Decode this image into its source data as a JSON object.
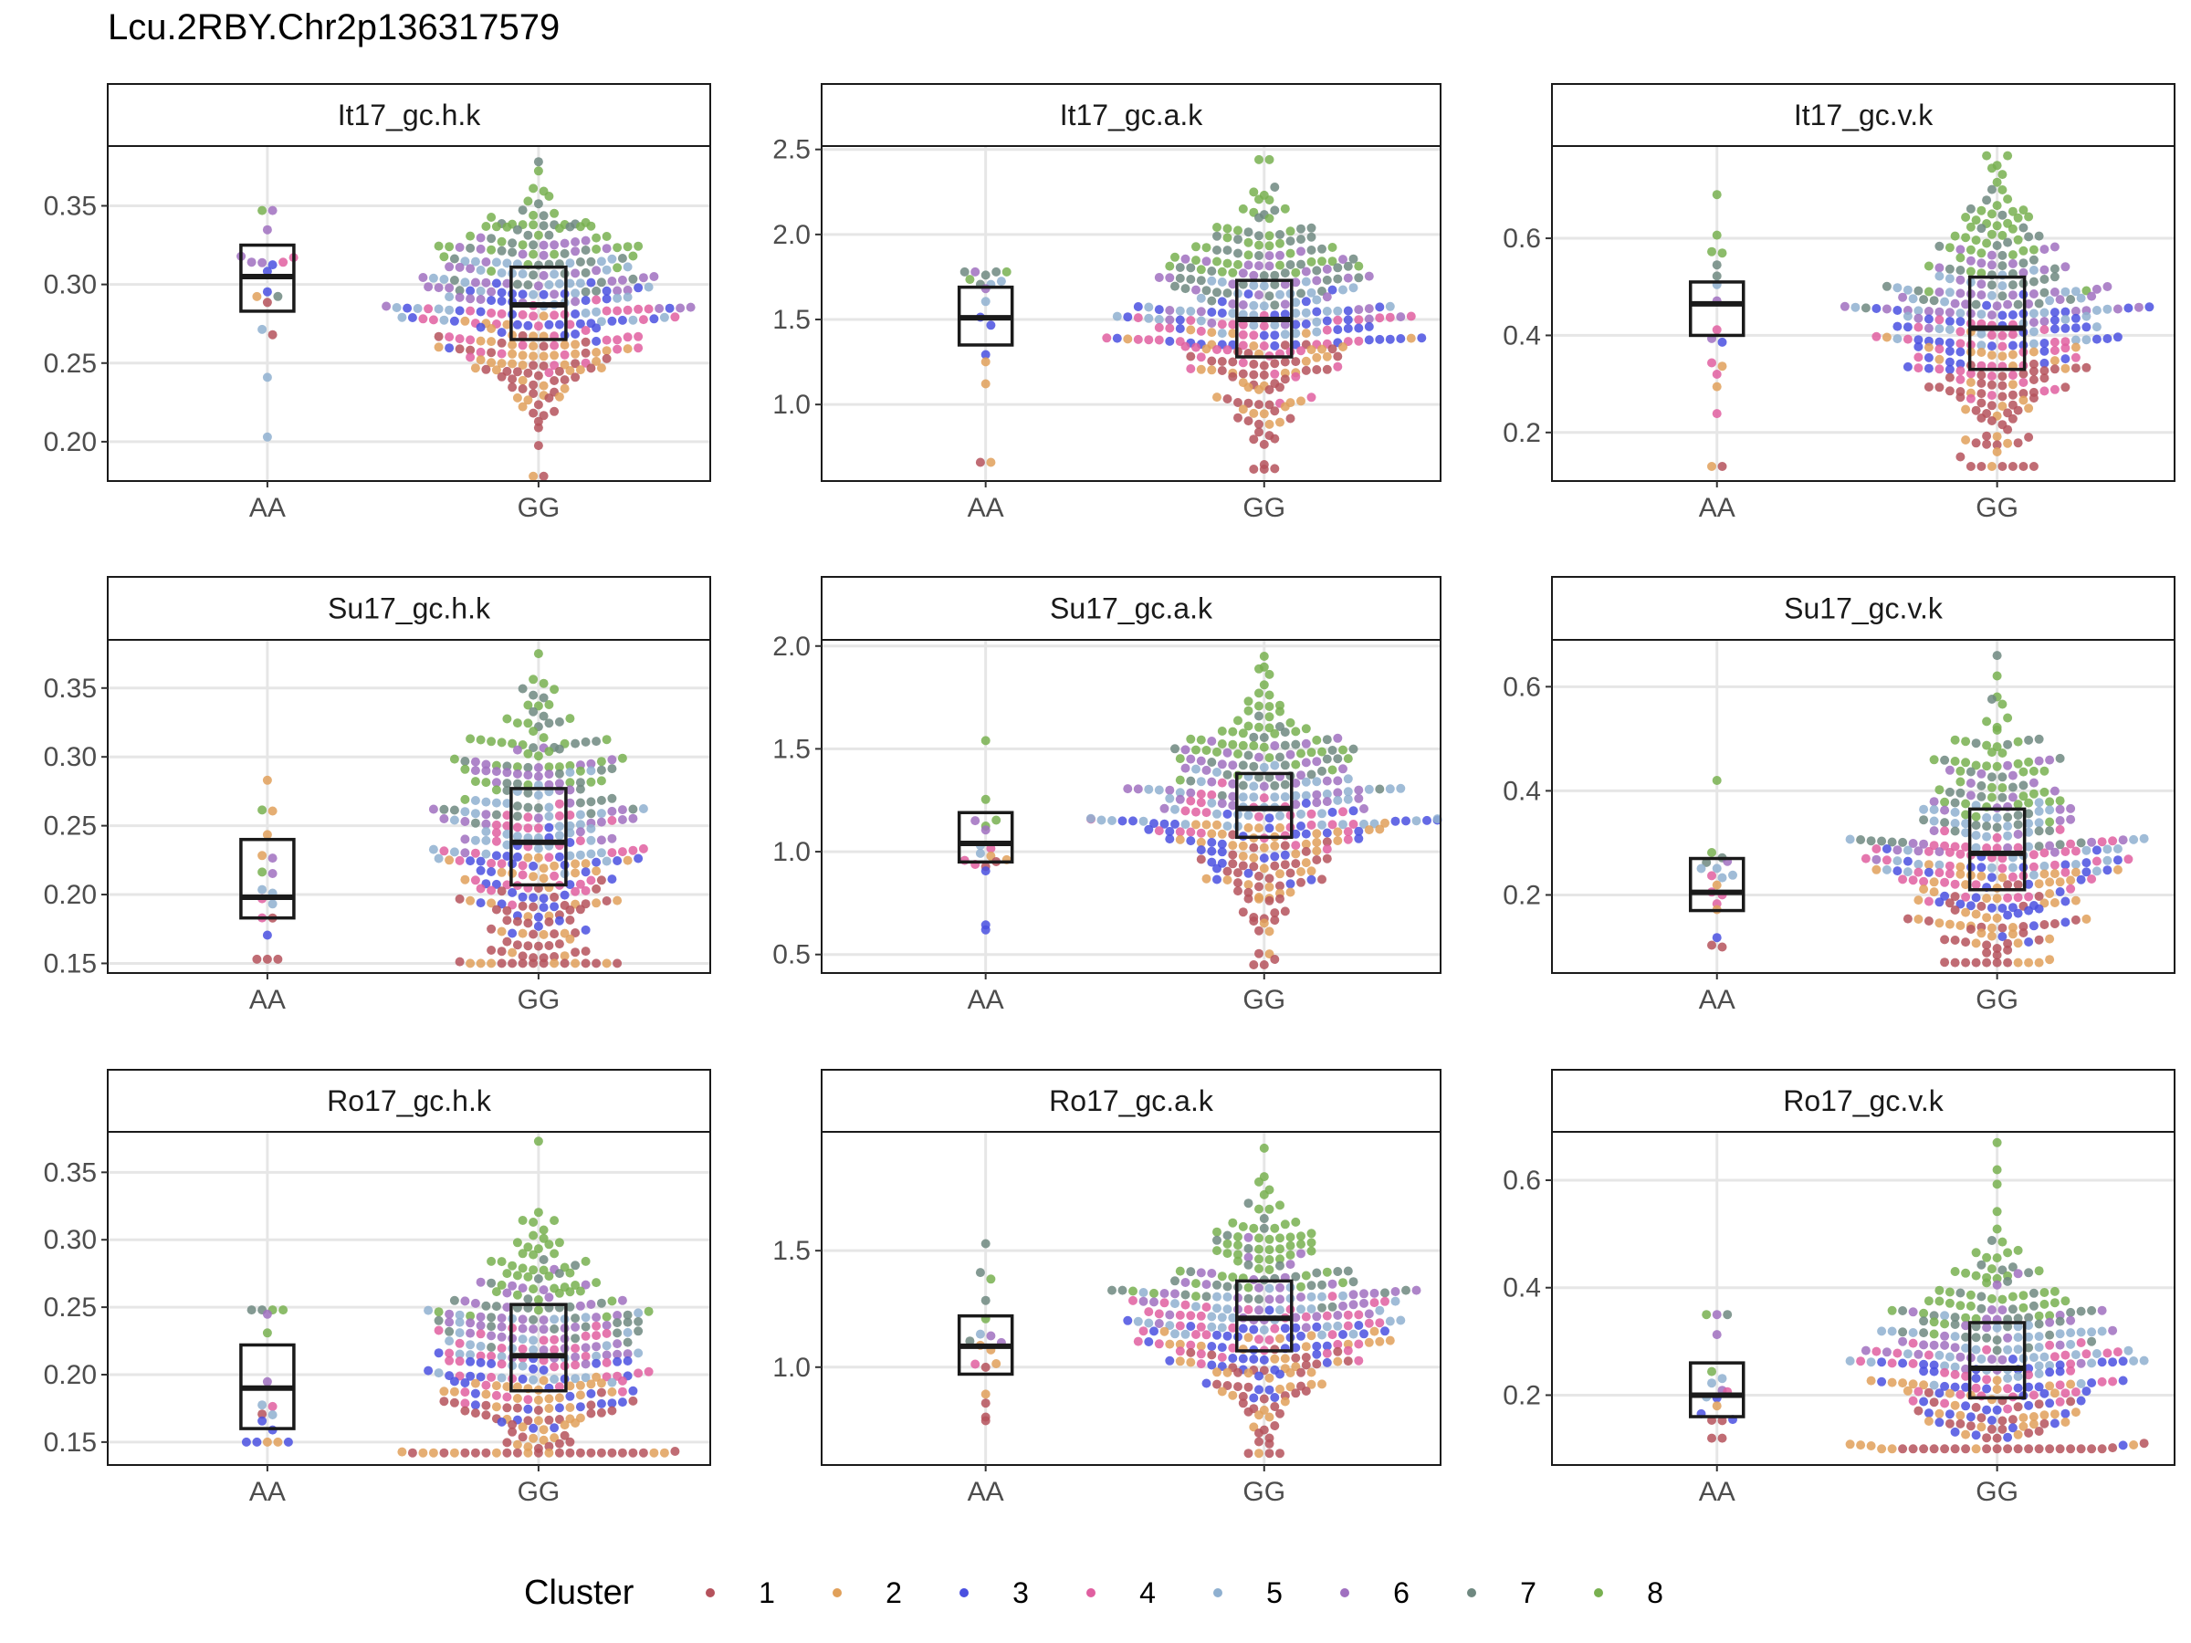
{
  "title": "Lcu.2RBY.Chr2p136317579",
  "legend": {
    "title": "Cluster",
    "labels": [
      "1",
      "2",
      "3",
      "4",
      "5",
      "6",
      "7",
      "8"
    ],
    "colors": [
      "#b5525c",
      "#e0a05a",
      "#4a50e0",
      "#e05fa0",
      "#8fb0d0",
      "#a070c0",
      "#6f8880",
      "#78b050"
    ]
  },
  "chart_data": [
    {
      "type": "scatter",
      "title": "It17_gc.h.k",
      "categories": [
        "AA",
        "GG"
      ],
      "ylim": [
        0.175,
        0.388
      ],
      "yticks": [
        0.2,
        0.25,
        0.3,
        0.35
      ],
      "ytick_labels": [
        "0.20",
        "0.25",
        "0.30",
        "0.35"
      ],
      "grid": true,
      "box": {
        "AA": {
          "q1": 0.283,
          "median": 0.305,
          "q3": 0.325
        },
        "GG": {
          "q1": 0.265,
          "median": 0.287,
          "q3": 0.311
        }
      },
      "range": {
        "AA": [
          0.203,
          0.347
        ],
        "GG": [
          0.178,
          0.378
        ]
      },
      "counts": {
        "AA": 18,
        "GG": 330
      },
      "order": {
        "AA": [
          5,
          1,
          2,
          7,
          3,
          4,
          6,
          8
        ],
        "GG": [
          1,
          2,
          4,
          3,
          5,
          6,
          7,
          8
        ]
      }
    },
    {
      "type": "scatter",
      "title": "It17_gc.a.k",
      "categories": [
        "AA",
        "GG"
      ],
      "ylim": [
        0.55,
        2.52
      ],
      "yticks": [
        1.0,
        1.5,
        2.0,
        2.5
      ],
      "ytick_labels": [
        "1.0",
        "1.5",
        "2.0",
        "2.5"
      ],
      "grid": true,
      "box": {
        "AA": {
          "q1": 1.35,
          "median": 1.51,
          "q3": 1.69
        },
        "GG": {
          "q1": 1.28,
          "median": 1.5,
          "q3": 1.73
        }
      },
      "range": {
        "AA": [
          0.66,
          1.78
        ],
        "GG": [
          0.62,
          2.44
        ]
      },
      "counts": {
        "AA": 18,
        "GG": 330
      },
      "order": {
        "AA": [
          1,
          2,
          3,
          4,
          5,
          6,
          7,
          8
        ],
        "GG": [
          1,
          2,
          4,
          3,
          5,
          6,
          7,
          8
        ]
      }
    },
    {
      "type": "scatter",
      "title": "It17_gc.v.k",
      "categories": [
        "AA",
        "GG"
      ],
      "ylim": [
        0.1,
        0.79
      ],
      "yticks": [
        0.2,
        0.4,
        0.6
      ],
      "ytick_labels": [
        "0.2",
        "0.4",
        "0.6"
      ],
      "grid": true,
      "box": {
        "AA": {
          "q1": 0.4,
          "median": 0.465,
          "q3": 0.51
        },
        "GG": {
          "q1": 0.33,
          "median": 0.415,
          "q3": 0.52
        }
      },
      "range": {
        "AA": [
          0.13,
          0.69
        ],
        "GG": [
          0.13,
          0.77
        ]
      },
      "counts": {
        "AA": 18,
        "GG": 330
      },
      "order": {
        "AA": [
          1,
          2,
          4,
          3,
          5,
          6,
          7,
          8
        ],
        "GG": [
          1,
          2,
          4,
          3,
          5,
          6,
          7,
          8
        ]
      }
    },
    {
      "type": "scatter",
      "title": "Su17_gc.h.k",
      "categories": [
        "AA",
        "GG"
      ],
      "ylim": [
        0.143,
        0.385
      ],
      "yticks": [
        0.15,
        0.2,
        0.25,
        0.3,
        0.35
      ],
      "ytick_labels": [
        "0.15",
        "0.20",
        "0.25",
        "0.30",
        "0.35"
      ],
      "grid": true,
      "box": {
        "AA": {
          "q1": 0.183,
          "median": 0.198,
          "q3": 0.24
        },
        "GG": {
          "q1": 0.207,
          "median": 0.238,
          "q3": 0.277
        }
      },
      "range": {
        "AA": [
          0.153,
          0.283
        ],
        "GG": [
          0.15,
          0.375
        ]
      },
      "counts": {
        "AA": 18,
        "GG": 330
      },
      "order": {
        "AA": [
          1,
          3,
          4,
          5,
          6,
          7,
          8,
          2
        ],
        "GG": [
          1,
          2,
          3,
          4,
          5,
          6,
          7,
          8
        ]
      }
    },
    {
      "type": "scatter",
      "title": "Su17_gc.a.k",
      "categories": [
        "AA",
        "GG"
      ],
      "ylim": [
        0.41,
        2.03
      ],
      "yticks": [
        0.5,
        1.0,
        1.5,
        2.0
      ],
      "ytick_labels": [
        "0.5",
        "1.0",
        "1.5",
        "2.0"
      ],
      "grid": true,
      "box": {
        "AA": {
          "q1": 0.95,
          "median": 1.04,
          "q3": 1.19
        },
        "GG": {
          "q1": 1.07,
          "median": 1.21,
          "q3": 1.38
        }
      },
      "range": {
        "AA": [
          0.62,
          1.54
        ],
        "GG": [
          0.45,
          1.95
        ]
      },
      "counts": {
        "AA": 18,
        "GG": 330
      },
      "order": {
        "AA": [
          1,
          3,
          2,
          4,
          5,
          6,
          7,
          8
        ],
        "GG": [
          1,
          2,
          3,
          4,
          5,
          6,
          7,
          8
        ]
      }
    },
    {
      "type": "scatter",
      "title": "Su17_gc.v.k",
      "categories": [
        "AA",
        "GG"
      ],
      "ylim": [
        0.05,
        0.69
      ],
      "yticks": [
        0.2,
        0.4,
        0.6
      ],
      "ytick_labels": [
        "0.2",
        "0.4",
        "0.6"
      ],
      "grid": true,
      "box": {
        "AA": {
          "q1": 0.17,
          "median": 0.205,
          "q3": 0.27
        },
        "GG": {
          "q1": 0.21,
          "median": 0.28,
          "q3": 0.365
        }
      },
      "range": {
        "AA": [
          0.1,
          0.42
        ],
        "GG": [
          0.07,
          0.66
        ]
      },
      "counts": {
        "AA": 18,
        "GG": 330
      },
      "order": {
        "AA": [
          1,
          3,
          2,
          4,
          5,
          6,
          7,
          8
        ],
        "GG": [
          1,
          2,
          3,
          4,
          5,
          6,
          7,
          8
        ]
      }
    },
    {
      "type": "scatter",
      "title": "Ro17_gc.h.k",
      "categories": [
        "AA",
        "GG"
      ],
      "ylim": [
        0.133,
        0.38
      ],
      "yticks": [
        0.15,
        0.2,
        0.25,
        0.3,
        0.35
      ],
      "ytick_labels": [
        "0.15",
        "0.20",
        "0.25",
        "0.30",
        "0.35"
      ],
      "grid": true,
      "box": {
        "AA": {
          "q1": 0.16,
          "median": 0.19,
          "q3": 0.222
        },
        "GG": {
          "q1": 0.188,
          "median": 0.214,
          "q3": 0.252
        }
      },
      "range": {
        "AA": [
          0.15,
          0.248
        ],
        "GG": [
          0.142,
          0.373
        ]
      },
      "counts": {
        "AA": 18,
        "GG": 330
      },
      "order": {
        "AA": [
          2,
          3,
          1,
          4,
          5,
          6,
          7,
          8
        ],
        "GG": [
          1,
          2,
          3,
          4,
          5,
          6,
          7,
          8
        ]
      }
    },
    {
      "type": "scatter",
      "title": "Ro17_gc.a.k",
      "categories": [
        "AA",
        "GG"
      ],
      "ylim": [
        0.58,
        2.01
      ],
      "yticks": [
        1.0,
        1.5
      ],
      "ytick_labels": [
        "1.0",
        "1.5"
      ],
      "grid": true,
      "box": {
        "AA": {
          "q1": 0.97,
          "median": 1.09,
          "q3": 1.22
        },
        "GG": {
          "q1": 1.07,
          "median": 1.21,
          "q3": 1.37
        }
      },
      "range": {
        "AA": [
          0.77,
          1.53
        ],
        "GG": [
          0.63,
          1.94
        ]
      },
      "counts": {
        "AA": 18,
        "GG": 330
      },
      "order": {
        "AA": [
          1,
          3,
          2,
          4,
          5,
          6,
          7,
          8
        ],
        "GG": [
          1,
          2,
          3,
          4,
          5,
          6,
          7,
          8
        ]
      }
    },
    {
      "type": "scatter",
      "title": "Ro17_gc.v.k",
      "categories": [
        "AA",
        "GG"
      ],
      "ylim": [
        0.07,
        0.69
      ],
      "yticks": [
        0.2,
        0.4,
        0.6
      ],
      "ytick_labels": [
        "0.2",
        "0.4",
        "0.6"
      ],
      "grid": true,
      "box": {
        "AA": {
          "q1": 0.16,
          "median": 0.2,
          "q3": 0.26
        },
        "GG": {
          "q1": 0.195,
          "median": 0.25,
          "q3": 0.335
        }
      },
      "range": {
        "AA": [
          0.12,
          0.35
        ],
        "GG": [
          0.1,
          0.67
        ]
      },
      "counts": {
        "AA": 18,
        "GG": 330
      },
      "order": {
        "AA": [
          1,
          3,
          2,
          4,
          5,
          6,
          7,
          8
        ],
        "GG": [
          1,
          2,
          3,
          4,
          5,
          6,
          7,
          8
        ]
      }
    }
  ]
}
